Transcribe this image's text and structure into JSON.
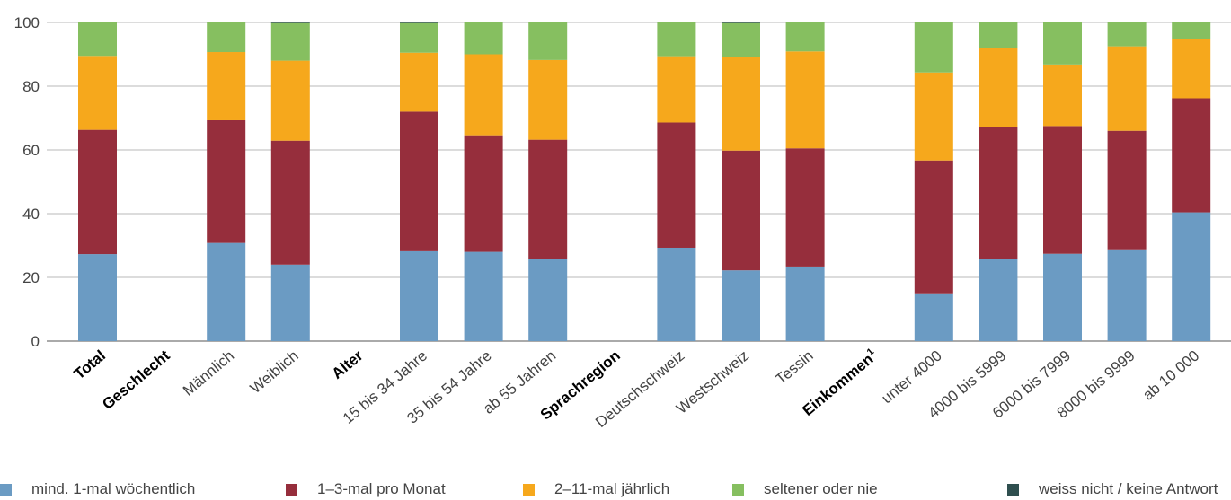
{
  "chart_data": {
    "type": "bar",
    "stacked": true,
    "ylim": [
      0,
      100
    ],
    "yticks": [
      0,
      20,
      40,
      60,
      80,
      100
    ],
    "grid": true,
    "legend_position": "bottom",
    "categories": [
      {
        "label": "Total",
        "bold": true
      },
      {
        "label": "Geschlecht",
        "bold": true,
        "header": true
      },
      {
        "label": "Männlich"
      },
      {
        "label": "Weiblich"
      },
      {
        "label": "Alter",
        "bold": true,
        "header": true
      },
      {
        "label": "15 bis 34 Jahre"
      },
      {
        "label": "35 bis 54 Jahre"
      },
      {
        "label": "ab 55 Jahren"
      },
      {
        "label": "Sprachregion",
        "bold": true,
        "header": true
      },
      {
        "label": "Deutschschweiz"
      },
      {
        "label": "Westschweiz"
      },
      {
        "label": "Tessin"
      },
      {
        "label": "Einkommen",
        "sup": "1",
        "bold": true,
        "header": true
      },
      {
        "label": "unter 4000"
      },
      {
        "label": "4000 bis 5999"
      },
      {
        "label": "6000 bis 7999"
      },
      {
        "label": "8000 bis 9999"
      },
      {
        "label": "ab 10 000"
      }
    ],
    "series": [
      {
        "name": "mind. 1-mal wöchentlich",
        "color": "#6b9bc3",
        "values": [
          27.3,
          null,
          30.8,
          24.0,
          null,
          28.2,
          28.0,
          25.9,
          null,
          29.3,
          22.2,
          23.4,
          null,
          15.0,
          25.9,
          27.4,
          28.8,
          40.4
        ]
      },
      {
        "name": "1–3-mal pro Monat",
        "color": "#962e3c",
        "values": [
          39.0,
          null,
          38.5,
          38.9,
          null,
          43.8,
          36.6,
          37.3,
          null,
          39.3,
          37.6,
          37.1,
          null,
          41.7,
          41.3,
          40.1,
          37.2,
          35.8
        ]
      },
      {
        "name": "2–11-mal jährlich",
        "color": "#f6a81c",
        "values": [
          23.2,
          null,
          21.4,
          25.1,
          null,
          18.5,
          25.4,
          25.0,
          null,
          20.8,
          29.3,
          30.4,
          null,
          27.6,
          24.8,
          19.3,
          26.5,
          18.7
        ]
      },
      {
        "name": "seltener oder nie",
        "color": "#86bf60",
        "values": [
          10.5,
          null,
          9.3,
          11.8,
          null,
          9.3,
          10.0,
          11.8,
          null,
          10.6,
          10.7,
          9.1,
          null,
          15.7,
          8.0,
          13.2,
          7.5,
          5.1
        ]
      },
      {
        "name": "weiss nicht / keine Antwort",
        "color": "#2f4f4f",
        "values": [
          0.0,
          null,
          0.0,
          0.2,
          null,
          0.2,
          0.0,
          0.0,
          null,
          0.0,
          0.2,
          0.0,
          null,
          0.0,
          0.0,
          0.0,
          0.0,
          0.0
        ]
      }
    ]
  }
}
